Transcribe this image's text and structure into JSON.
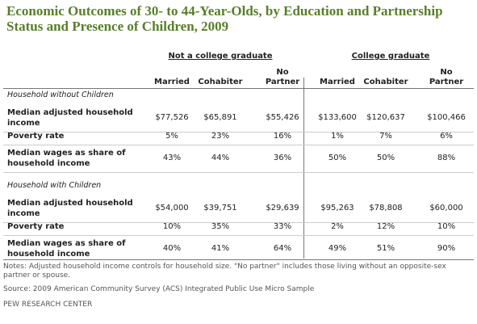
{
  "title": "Economic Outcomes of 30- to 44-Year-Olds, by Education and Partnership Status and Presence of Children, 2009",
  "table": {
    "groups": [
      "Not a college graduate",
      "College graduate"
    ],
    "columns": [
      "Married",
      "Cohabiter",
      "No Partner",
      "Married",
      "Cohabiter",
      "No Partner"
    ],
    "sections": [
      {
        "heading": "Household without Children",
        "rows": [
          {
            "label": "Median adjusted household income",
            "cells": [
              "$77,526",
              "$65,891",
              "$55,426",
              "$133,600",
              "$120,637",
              "$100,466"
            ]
          },
          {
            "label": "Poverty rate",
            "cells": [
              "5%",
              "23%",
              "16%",
              "1%",
              "7%",
              "6%"
            ]
          },
          {
            "label": "Median wages as share of household income",
            "cells": [
              "43%",
              "44%",
              "36%",
              "50%",
              "50%",
              "88%"
            ]
          }
        ]
      },
      {
        "heading": "Household with Children",
        "rows": [
          {
            "label": "Median adjusted household income",
            "cells": [
              "$54,000",
              "$39,751",
              "$29,639",
              "$95,263",
              "$78,808",
              "$60,000"
            ]
          },
          {
            "label": "Poverty rate",
            "cells": [
              "10%",
              "35%",
              "33%",
              "2%",
              "12%",
              "10%"
            ]
          },
          {
            "label": "Median wages as share of household income",
            "cells": [
              "40%",
              "41%",
              "64%",
              "49%",
              "51%",
              "90%"
            ]
          }
        ]
      }
    ]
  },
  "notes": "Notes: Adjusted household income controls for household size. \"No partner\" includes those living without an opposite-sex partner or spouse.",
  "source": "Source: 2009 American Community Survey (ACS) Integrated Public Use Micro Sample",
  "credit": "PEW RESEARCH CENTER"
}
